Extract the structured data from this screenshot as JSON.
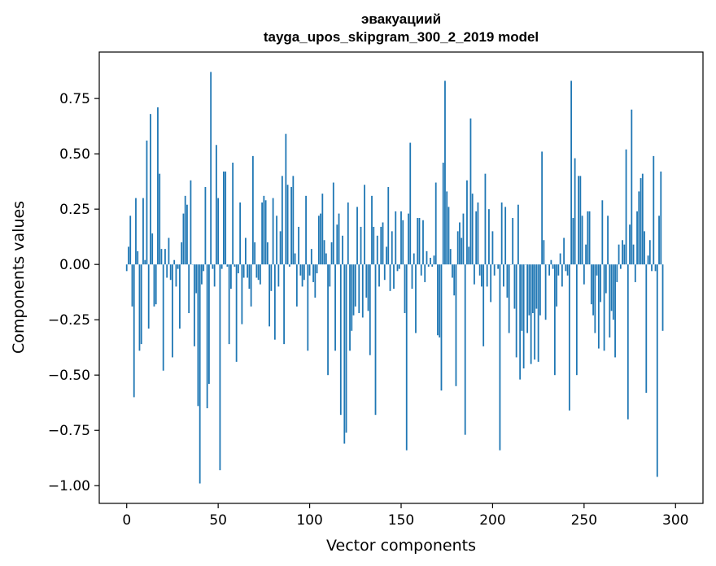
{
  "chart_data": {
    "type": "bar",
    "title": "эвакуациий",
    "subtitle": "tayga_upos_skipgram_300_2_2019 model",
    "xlabel": "Vector components",
    "ylabel": "Components values",
    "xlim": [
      -15,
      315
    ],
    "ylim": [
      -1.08,
      0.96
    ],
    "x_ticks": [
      0,
      50,
      100,
      150,
      200,
      250,
      300
    ],
    "x_tick_labels": [
      "0",
      "50",
      "100",
      "150",
      "200",
      "250",
      "300"
    ],
    "y_ticks": [
      -1.0,
      -0.75,
      -0.5,
      -0.25,
      0.0,
      0.25,
      0.5,
      0.75
    ],
    "y_tick_labels": [
      "−1.00",
      "−0.75",
      "−0.50",
      "−0.25",
      "0.00",
      "0.25",
      "0.50",
      "0.75"
    ],
    "bar_color": "#1f77b4",
    "grid": false,
    "values": [
      -0.03,
      0.08,
      0.22,
      -0.19,
      -0.6,
      0.3,
      0.06,
      -0.39,
      -0.36,
      0.3,
      0.02,
      0.56,
      -0.29,
      0.68,
      0.14,
      -0.19,
      -0.18,
      0.71,
      0.41,
      0.07,
      -0.48,
      0.07,
      -0.06,
      0.12,
      -0.07,
      -0.42,
      0.02,
      -0.1,
      -0.02,
      -0.29,
      0.1,
      0.23,
      0.31,
      0.27,
      -0.22,
      0.38,
      0.0,
      -0.37,
      -0.13,
      -0.64,
      -0.99,
      -0.09,
      -0.03,
      0.35,
      -0.65,
      -0.54,
      0.87,
      -0.02,
      -0.1,
      0.54,
      0.3,
      -0.93,
      -0.02,
      0.42,
      0.42,
      -0.01,
      -0.36,
      -0.11,
      0.46,
      -0.01,
      -0.44,
      -0.04,
      0.28,
      -0.27,
      -0.06,
      0.12,
      -0.06,
      -0.11,
      -0.19,
      0.49,
      0.1,
      -0.06,
      -0.07,
      -0.09,
      0.28,
      0.31,
      0.29,
      0.1,
      -0.28,
      -0.12,
      0.3,
      -0.34,
      0.22,
      -0.1,
      0.15,
      0.4,
      -0.36,
      0.59,
      0.36,
      -0.01,
      0.35,
      0.4,
      0.05,
      -0.19,
      0.17,
      -0.05,
      -0.1,
      -0.07,
      0.31,
      -0.39,
      -0.05,
      0.07,
      -0.08,
      -0.15,
      -0.04,
      0.22,
      0.23,
      0.32,
      0.11,
      0.05,
      -0.5,
      -0.1,
      0.1,
      0.37,
      -0.39,
      0.18,
      0.23,
      -0.68,
      0.13,
      -0.81,
      -0.76,
      0.28,
      -0.39,
      -0.3,
      -0.23,
      -0.19,
      0.26,
      -0.22,
      0.17,
      -0.24,
      0.36,
      -0.15,
      -0.21,
      -0.41,
      0.31,
      0.17,
      -0.68,
      0.13,
      -0.1,
      0.17,
      0.19,
      -0.07,
      0.08,
      0.35,
      -0.12,
      0.15,
      -0.11,
      0.24,
      -0.03,
      -0.02,
      0.24,
      0.2,
      -0.22,
      -0.84,
      0.23,
      0.55,
      -0.11,
      0.05,
      -0.31,
      0.21,
      0.21,
      -0.05,
      0.2,
      -0.08,
      0.06,
      -0.01,
      0.03,
      -0.01,
      0.04,
      0.37,
      -0.32,
      -0.33,
      -0.57,
      0.46,
      0.83,
      0.33,
      0.26,
      0.07,
      -0.06,
      -0.14,
      -0.55,
      0.15,
      0.19,
      0.12,
      0.23,
      -0.77,
      0.38,
      0.08,
      0.66,
      0.32,
      -0.09,
      0.24,
      0.28,
      -0.05,
      -0.1,
      -0.37,
      0.41,
      -0.1,
      0.25,
      -0.17,
      0.15,
      -0.05,
      0.0,
      -0.02,
      -0.84,
      0.28,
      -0.1,
      0.26,
      -0.15,
      -0.31,
      0.0,
      0.21,
      -0.2,
      -0.42,
      0.27,
      -0.52,
      -0.3,
      -0.47,
      0.0,
      -0.31,
      -0.23,
      -0.45,
      -0.22,
      -0.43,
      -0.2,
      -0.44,
      -0.23,
      0.51,
      0.11,
      -0.25,
      0.0,
      -0.05,
      0.02,
      -0.02,
      -0.5,
      -0.19,
      -0.05,
      0.05,
      -0.1,
      0.12,
      -0.03,
      -0.05,
      -0.66,
      0.83,
      0.21,
      0.48,
      -0.5,
      0.4,
      0.4,
      0.22,
      -0.09,
      0.09,
      0.24,
      0.24,
      -0.18,
      -0.23,
      -0.31,
      -0.05,
      -0.38,
      -0.17,
      0.29,
      -0.39,
      -0.13,
      0.22,
      -0.33,
      -0.21,
      -0.25,
      -0.42,
      -0.08,
      0.09,
      -0.02,
      0.11,
      0.09,
      0.52,
      -0.7,
      0.18,
      0.7,
      0.09,
      -0.08,
      0.24,
      0.33,
      0.39,
      0.41,
      0.15,
      -0.58,
      0.04,
      0.11,
      -0.03,
      0.49,
      -0.03,
      -0.96,
      0.22,
      0.42,
      -0.3
    ]
  }
}
